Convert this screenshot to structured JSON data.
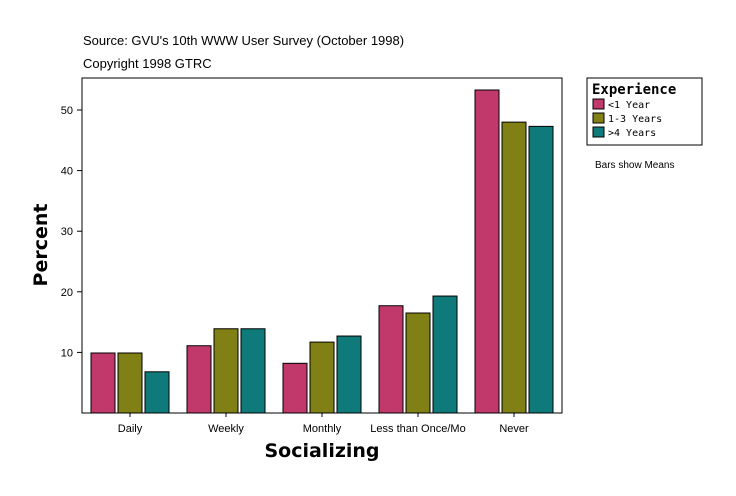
{
  "header": {
    "source": "Source: GVU's 10th WWW User Survey (October 1998)",
    "copyright": "Copyright 1998 GTRC"
  },
  "note": "Bars show Means",
  "chart_data": {
    "type": "bar",
    "xlabel": "Socializing",
    "ylabel": "Percent",
    "categories": [
      "Daily",
      "Weekly",
      "Monthly",
      "Less than Once/Mo",
      "Never"
    ],
    "series": [
      {
        "name": "<1 Year",
        "color": "#c0396a",
        "values": [
          9.9,
          11.1,
          8.2,
          17.7,
          53.3
        ]
      },
      {
        "name": "1-3 Years",
        "color": "#808014",
        "values": [
          9.9,
          13.9,
          11.7,
          16.5,
          48.0
        ]
      },
      {
        "name": ">4 Years",
        "color": "#0f7a7a",
        "values": [
          6.8,
          13.9,
          12.7,
          19.3,
          47.3
        ]
      }
    ],
    "ylim": [
      0,
      55
    ],
    "yticks": [
      10,
      20,
      30,
      40,
      50
    ],
    "legend": {
      "title": "Experience",
      "position": "right"
    },
    "grid": false
  }
}
